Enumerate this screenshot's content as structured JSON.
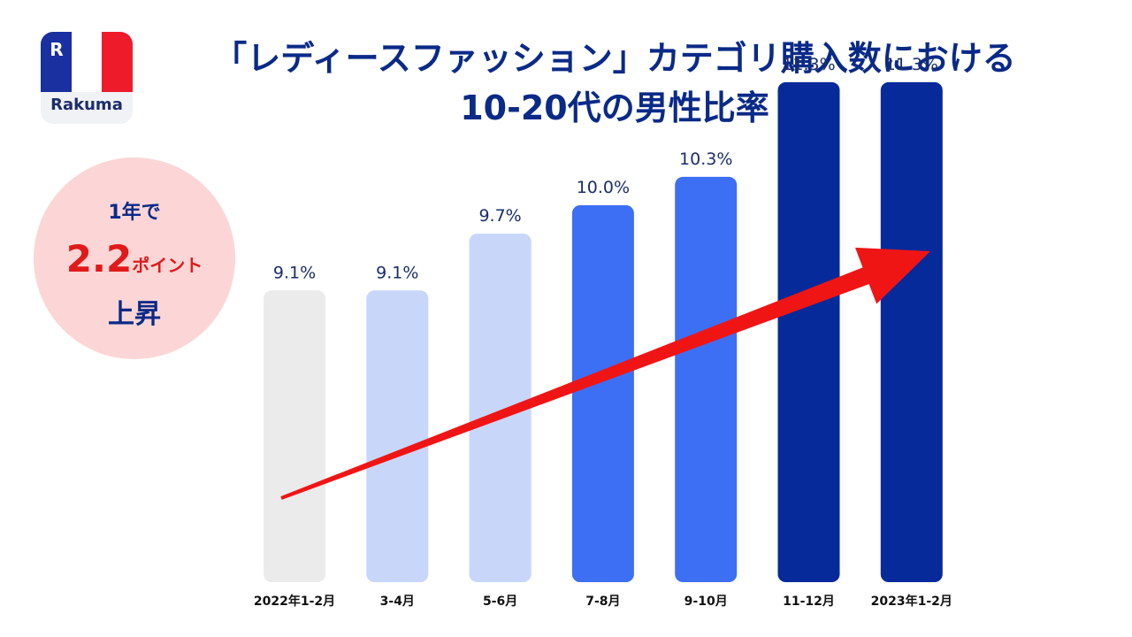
{
  "logo": {
    "brand": "Rakuma",
    "mark": "R"
  },
  "title": {
    "line1": "「レディースファッション」カテゴリ購入数における",
    "line2": "10-20代の男性比率"
  },
  "badge": {
    "line1": "1年で",
    "value": "2.2",
    "unit": "ポイント",
    "line3": "上昇"
  },
  "chart_data": {
    "type": "bar",
    "title": "「レディースファッション」カテゴリ購入数における10-20代の男性比率",
    "categories": [
      "2022年1-2月",
      "3-4月",
      "5-6月",
      "7-8月",
      "9-10月",
      "11-12月",
      "2023年1-2月"
    ],
    "values": [
      9.1,
      9.1,
      9.7,
      10.0,
      10.3,
      11.3,
      11.3
    ],
    "data_labels": [
      "9.1%",
      "9.1%",
      "9.7%",
      "10.0%",
      "10.3%",
      "11.3%",
      "11.3%"
    ],
    "bar_colors": [
      "#ebebeb",
      "#c8d6fa",
      "#c8d6fa",
      "#3d6ff5",
      "#3d6ff5",
      "#062a9a",
      "#062a9a"
    ],
    "trend_arrow_color": "#f01515",
    "grid": false,
    "legend": "none"
  }
}
